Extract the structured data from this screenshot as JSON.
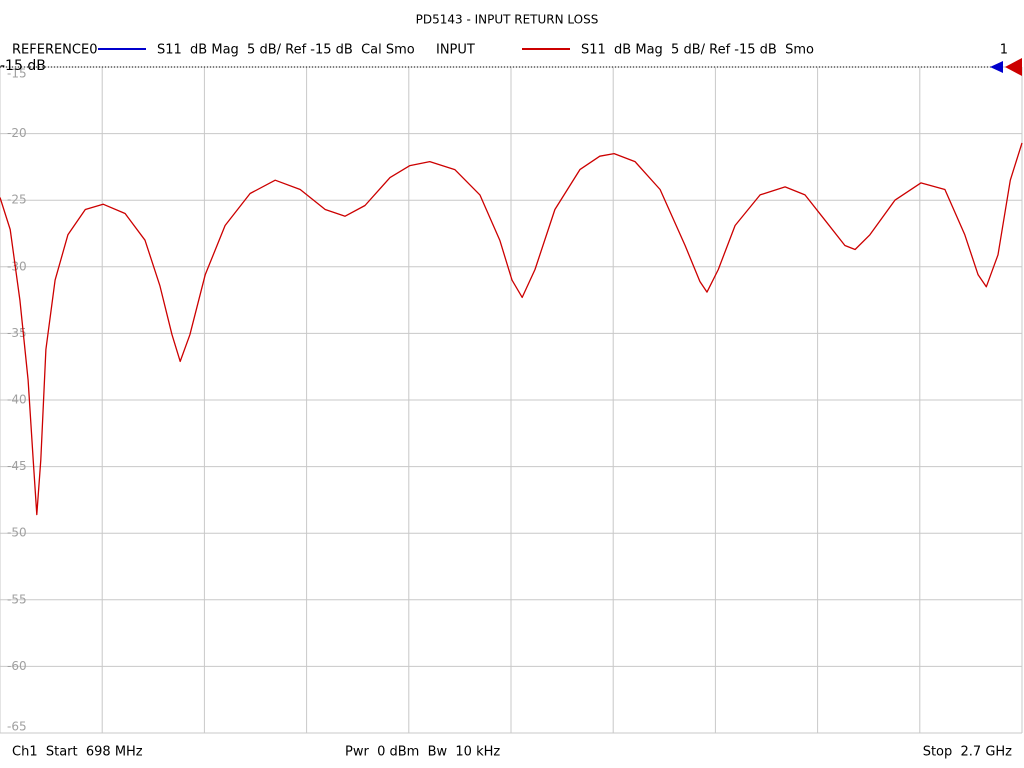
{
  "chart_data": {
    "type": "line",
    "title": "PD5143 - INPUT RETURN LOSS",
    "reference_trace": {
      "name": "REFERENCE0",
      "color": "#0000cc",
      "setting": "S11  dB Mag  5 dB/ Ref -15 dB  Cal Smo"
    },
    "series": [
      {
        "name": "INPUT",
        "color": "#cc0000",
        "setting": "S11  dB Mag  5 dB/ Ref -15 dB  Smo",
        "values": [
          -24.8,
          -27.2,
          -32.5,
          -38.5,
          -44.5,
          -48.6,
          -44.5,
          -36.2,
          -31,
          -27.6,
          -25.7,
          -25.3,
          -26,
          -28,
          -31.4,
          -35.1,
          -37.1,
          -35.1,
          -30.6,
          -26.9,
          -24.5,
          -23.5,
          -24.2,
          -25.7,
          -26.2,
          -25.4,
          -23.3,
          -22.4,
          -22.1,
          -22.7,
          -24.6,
          -28,
          -31,
          -32.3,
          -30.2,
          -25.7,
          -22.7,
          -21.7,
          -21.5,
          -22.1,
          -24.2,
          -28.4,
          -31.1,
          -31.9,
          -30.2,
          -26.9,
          -24.6,
          -24,
          -24.6,
          -26.5,
          -28.4,
          -28.7,
          -27.6,
          -25,
          -23.7,
          -24.2,
          -27.6,
          -30.6,
          -31.5,
          -29.1,
          -23.5,
          -20.7
        ]
      }
    ],
    "x": [
      698,
      718,
      737,
      753,
      763,
      770,
      778,
      788,
      806,
      831,
      865,
      900,
      943,
      982,
      1011,
      1035,
      1051,
      1070,
      1100,
      1139,
      1188,
      1237,
      1286,
      1335,
      1374,
      1413,
      1462,
      1501,
      1540,
      1589,
      1638,
      1677,
      1701,
      1721,
      1746,
      1785,
      1834,
      1873,
      1901,
      1942,
      1991,
      2040,
      2069,
      2083,
      2105,
      2138,
      2187,
      2236,
      2275,
      2314,
      2353,
      2373,
      2402,
      2451,
      2502,
      2549,
      2588,
      2614,
      2630,
      2653,
      2677,
      2700
    ],
    "xlim": [
      698,
      2700
    ],
    "xticks": [
      698,
      898.2,
      1098.4,
      1298.6,
      1498.8,
      1699,
      1899.2,
      2099.4,
      2299.6,
      2499.8,
      2700
    ],
    "ylim": [
      -15,
      -65
    ],
    "yticks": [
      -15,
      -20,
      -25,
      -30,
      -35,
      -40,
      -45,
      -50,
      -55,
      -60,
      -65
    ],
    "reference_level": -15,
    "reference_level_label": "-15 dB",
    "channel_number": "1",
    "start_label": "Ch1  Start  698 MHz",
    "power_bandwidth_label": "Pwr  0 dBm  Bw  10 kHz",
    "stop_label": "Stop  2.7 GHz",
    "grid": true
  }
}
